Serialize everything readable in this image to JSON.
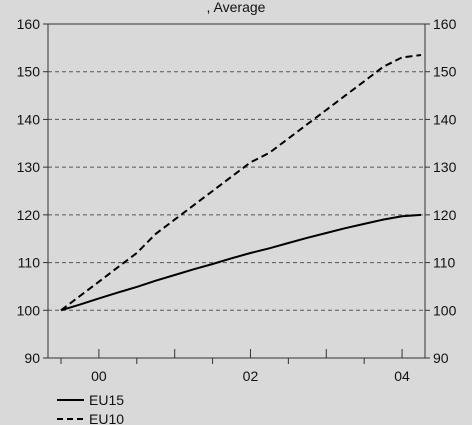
{
  "chart_data": {
    "type": "line",
    "title": ", Average",
    "xlabel": "",
    "ylabel": "",
    "x_tick_labels": [
      "00",
      "02",
      "04"
    ],
    "x_range": [
      0,
      19
    ],
    "ylim": [
      90,
      160
    ],
    "y_ticks": [
      90,
      100,
      110,
      120,
      130,
      140,
      150,
      160
    ],
    "grid": "horizontal dashed",
    "legend_position": "bottom-left",
    "series": [
      {
        "name": "EU15",
        "style": "solid",
        "color": "#000000",
        "x": [
          0,
          1,
          2,
          3,
          4,
          5,
          6,
          7,
          8,
          9,
          10,
          11,
          12,
          13,
          14,
          15,
          16,
          17,
          18,
          19
        ],
        "values": [
          100,
          101.2,
          102.5,
          103.7,
          104.9,
          106.2,
          107.4,
          108.6,
          109.7,
          110.9,
          112.0,
          113.0,
          114.1,
          115.2,
          116.2,
          117.2,
          118.1,
          119.0,
          119.7,
          120.0
        ]
      },
      {
        "name": "EU10",
        "style": "dashed",
        "color": "#000000",
        "x": [
          0,
          1,
          2,
          3,
          4,
          5,
          6,
          7,
          8,
          9,
          10,
          11,
          12,
          13,
          14,
          15,
          16,
          17,
          18,
          19
        ],
        "values": [
          100,
          103,
          106,
          109,
          112,
          116,
          119,
          122,
          125,
          128,
          131,
          133,
          136,
          139,
          142,
          145,
          148,
          151,
          153,
          153.5
        ]
      }
    ]
  }
}
